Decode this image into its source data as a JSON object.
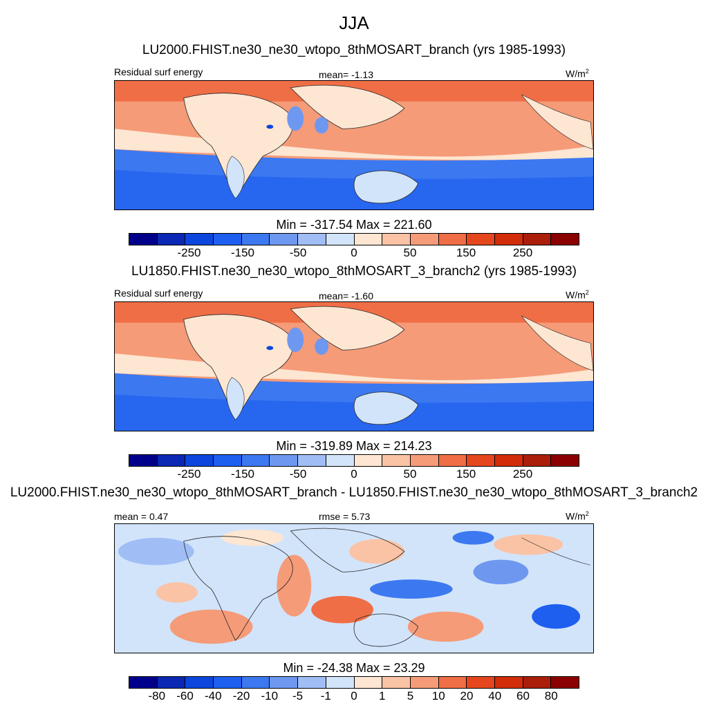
{
  "title": "JJA",
  "panels": [
    {
      "case_title": "LU2000.FHIST.ne30_ne30_wtopo_8thMOSART_branch (yrs 1985-1993)",
      "left_label": "Residual surf energy",
      "center_label": "mean=  -1.13",
      "units": "W/m",
      "units_exp": "2",
      "minmax": "Min = -317.54 Max = 221.60"
    },
    {
      "case_title": "LU1850.FHIST.ne30_ne30_wtopo_8thMOSART_3_branch2 (yrs 1985-1993)",
      "left_label": "Residual surf energy",
      "center_label": "mean=  -1.60",
      "units": "W/m",
      "units_exp": "2",
      "minmax": "Min = -319.89 Max = 214.23"
    },
    {
      "case_title": "LU2000.FHIST.ne30_ne30_wtopo_8thMOSART_branch - LU1850.FHIST.ne30_ne30_wtopo_8thMOSART_3_branch2",
      "left_label": "mean =   0.47",
      "center_label": "rmse =   5.73",
      "units": "W/m",
      "units_exp": "2",
      "minmax": "Min = -24.38 Max =  23.29"
    }
  ],
  "colorbar_colors": [
    "#00008b",
    "#0a28b4",
    "#0c46dc",
    "#1e5ff0",
    "#3c78f0",
    "#6e98f0",
    "#a0bef5",
    "#d2e4fa",
    "#fde6d2",
    "#fac3a5",
    "#f59b78",
    "#f06e46",
    "#e6461e",
    "#d22d0a",
    "#aa1e0a",
    "#8b0000"
  ],
  "colorbar_ticks_abs": [
    "-250",
    "-150",
    "-50",
    "0",
    "50",
    "150",
    "250"
  ],
  "colorbar_ticks_diff": [
    "-80",
    "-60",
    "-40",
    "-20",
    "-10",
    "-5",
    "-1",
    "0",
    "1",
    "5",
    "10",
    "20",
    "40",
    "60",
    "80"
  ]
}
